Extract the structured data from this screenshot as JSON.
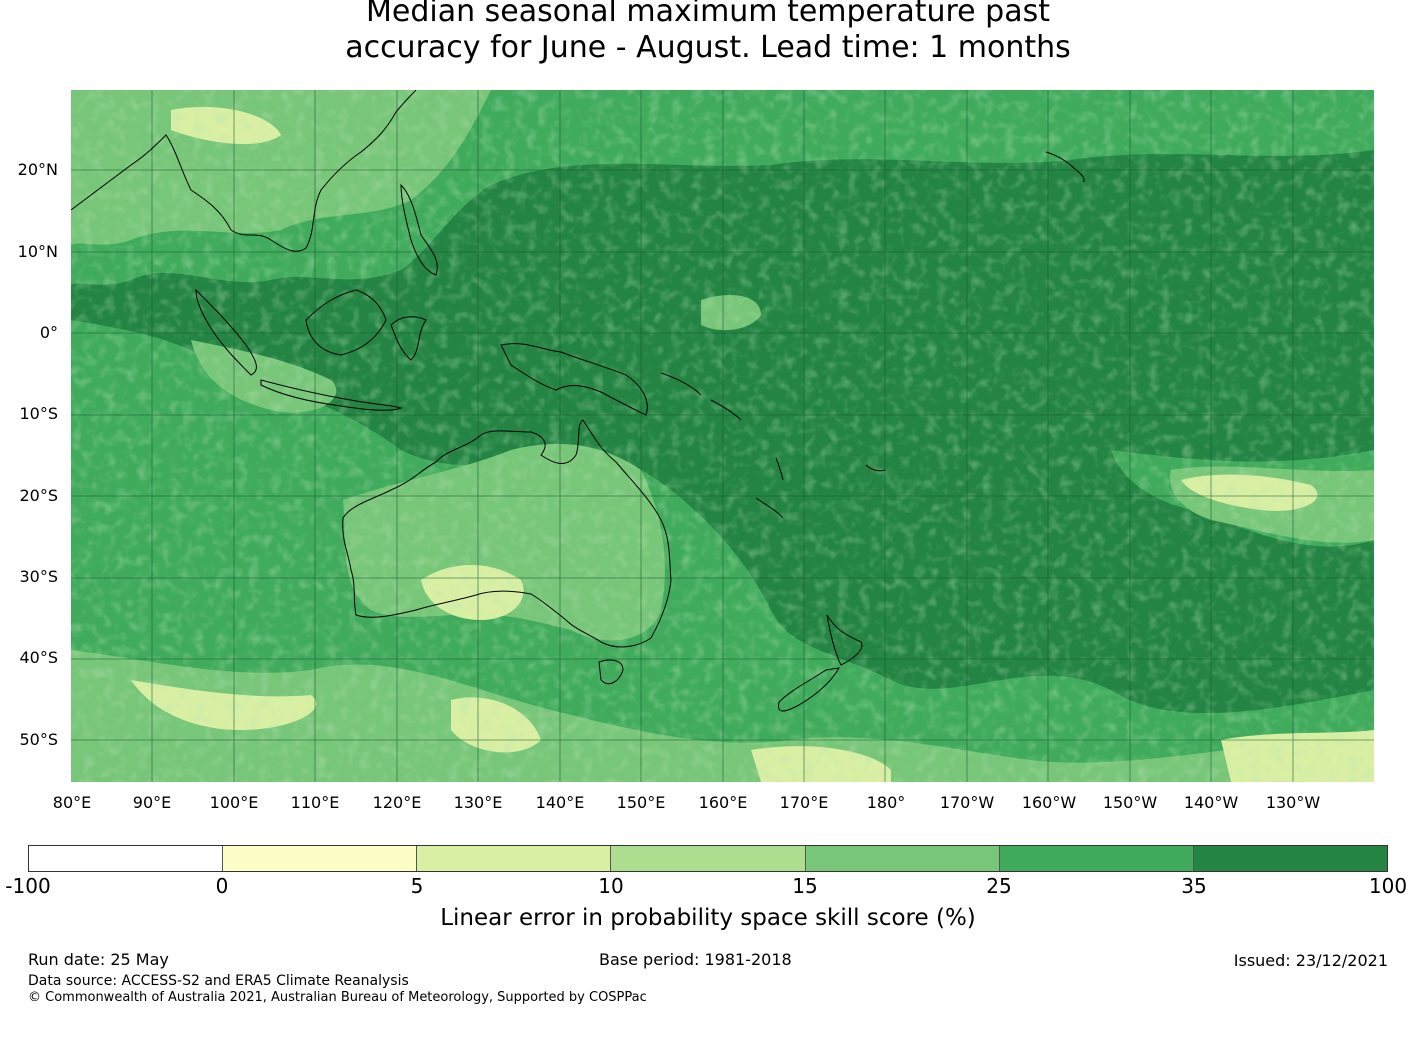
{
  "title_line1": "Median seasonal maximum temperature past",
  "title_line2": "accuracy for June - August. Lead time: 1 months",
  "map": {
    "lat_ticks": [
      "20°N",
      "10°N",
      "0°",
      "10°S",
      "20°S",
      "30°S",
      "40°S",
      "50°S"
    ],
    "lon_ticks": [
      "80°E",
      "90°E",
      "100°E",
      "110°E",
      "120°E",
      "130°E",
      "140°E",
      "150°E",
      "160°E",
      "170°E",
      "180°",
      "170°W",
      "160°W",
      "150°W",
      "140°W",
      "130°W"
    ],
    "extent": {
      "lon_min": 80,
      "lon_max": 240,
      "lat_min": -55,
      "lat_max": 30
    }
  },
  "colorbar": {
    "labels": [
      "-100",
      "0",
      "5",
      "10",
      "15",
      "25",
      "35",
      "100"
    ],
    "colors": [
      "#ffffff",
      "#fdfdc6",
      "#d9efa3",
      "#addd8e",
      "#78c679",
      "#41ab5d",
      "#238443"
    ],
    "title": "Linear error in probability space skill score (%)"
  },
  "footer": {
    "run_date": "Run date: 25 May",
    "base_period": "Base period: 1981-2018",
    "issued": "Issued: 23/12/2021",
    "data_source": "Data source: ACCESS-S2 and ERA5 Climate Reanalysis",
    "copyright": "© Commonwealth of Australia 2021, Australian Bureau of Meteorology, Supported by COSPPac"
  }
}
